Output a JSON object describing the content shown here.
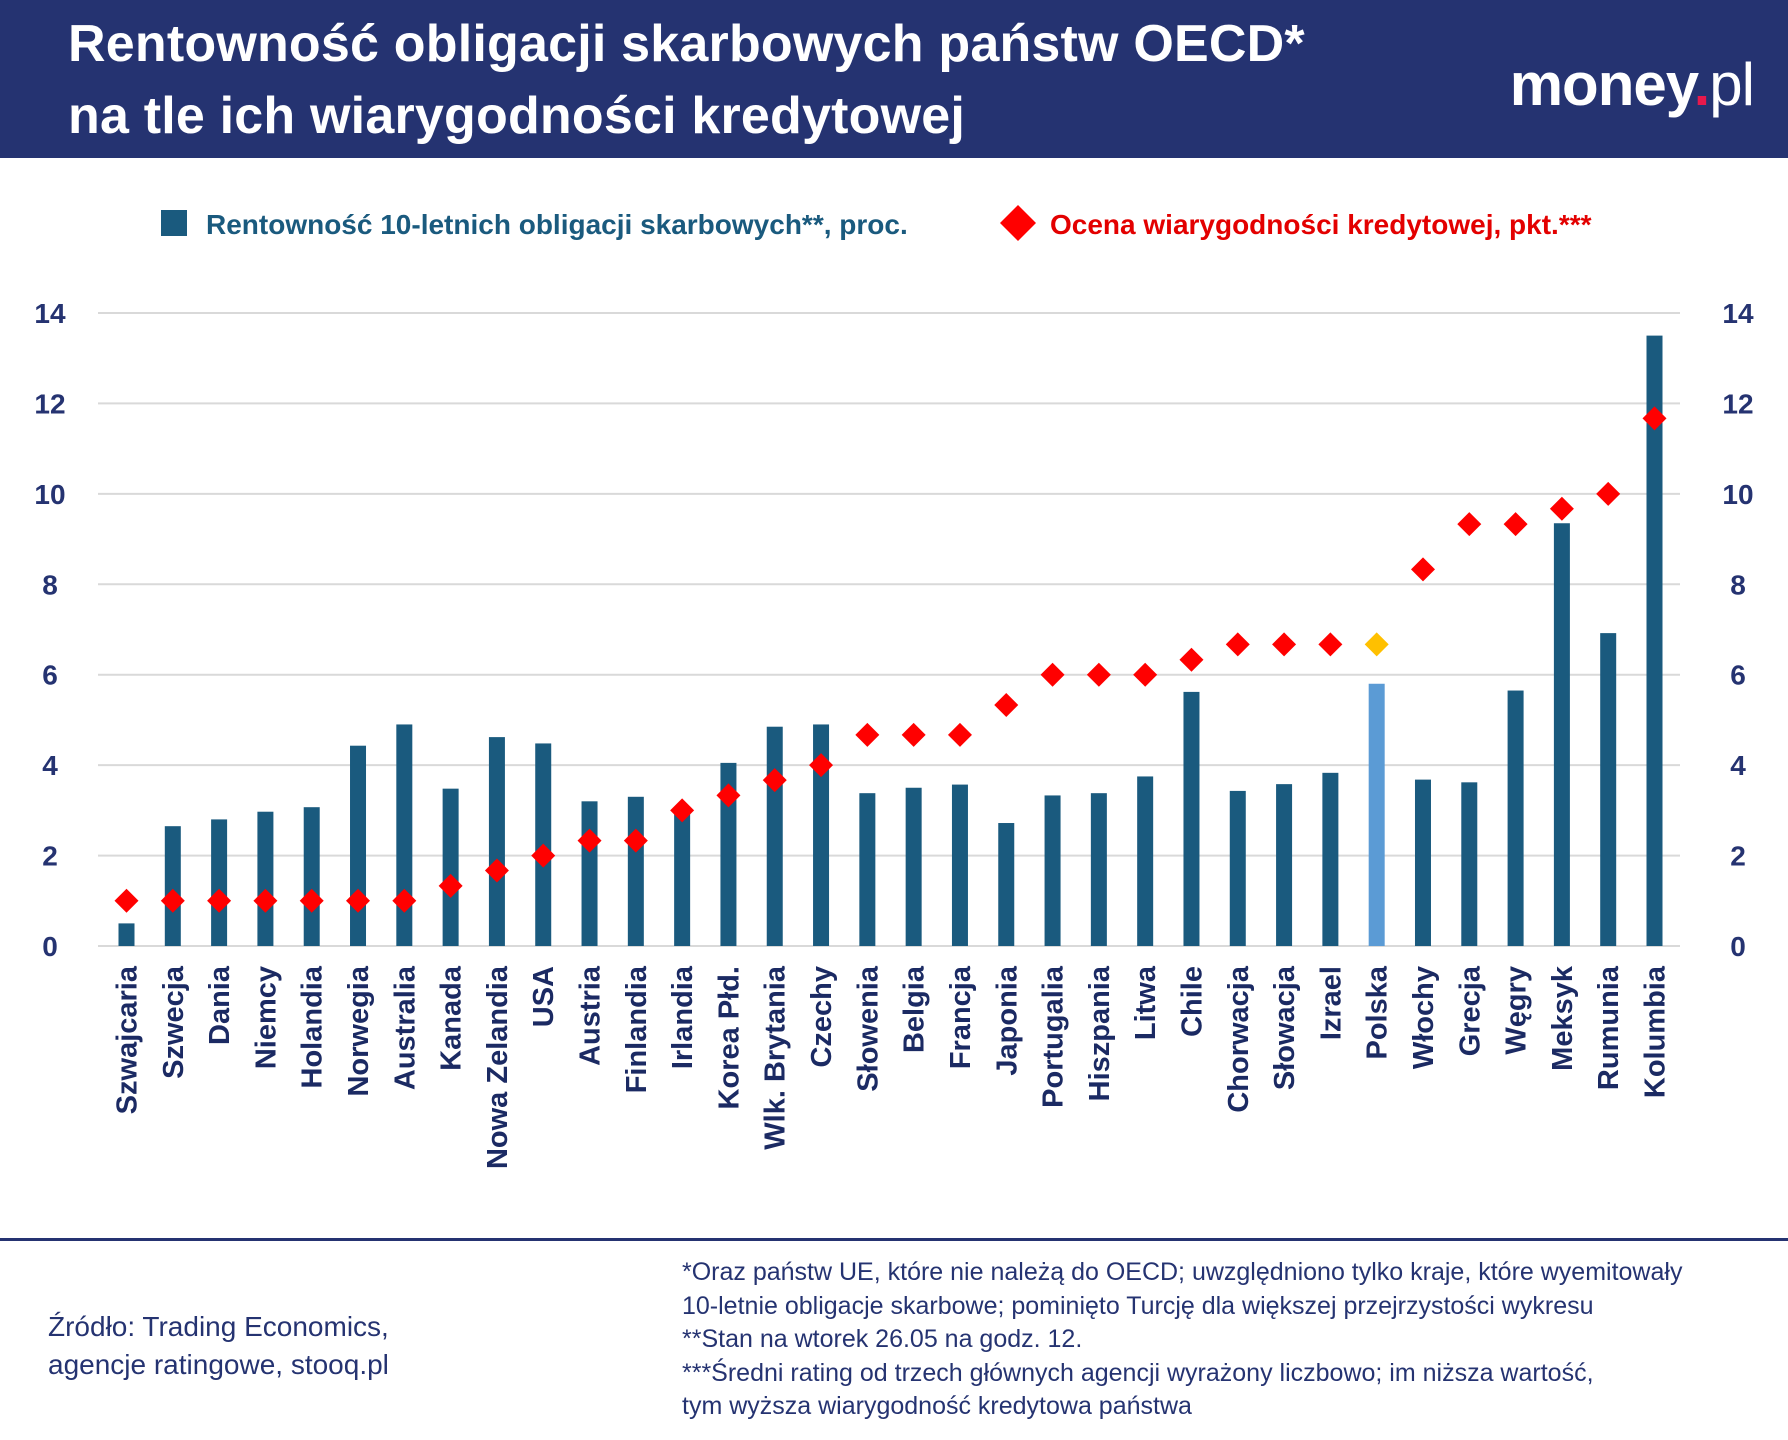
{
  "header": {
    "title_line1": "Rentowność obligacji skarbowych państw OECD*",
    "title_line2": "na tle ich wiarygodności kredytowej",
    "logo_main": "money",
    "logo_dot": ".",
    "logo_tld": "pl"
  },
  "colors": {
    "header_bg": "#253371",
    "bar": "#1a5a7e",
    "bar_highlight": "#5b9bd5",
    "diamond": "#ff0000",
    "diamond_highlight": "#ffc000",
    "legend_bar_text": "#1a5a7e",
    "legend_diamond_text": "#e30000",
    "highlight_label": "#5b9bd5",
    "grid": "#d9d9d9"
  },
  "chart_data": {
    "type": "bar",
    "categories": [
      "Szwajcaria",
      "Szwecja",
      "Dania",
      "Niemcy",
      "Holandia",
      "Norwegia",
      "Australia",
      "Kanada",
      "Nowa Zelandia",
      "USA",
      "Austria",
      "Finlandia",
      "Irlandia",
      "Korea Płd.",
      "Wlk. Brytania",
      "Czechy",
      "Słowenia",
      "Belgia",
      "Francja",
      "Japonia",
      "Portugalia",
      "Hiszpania",
      "Litwa",
      "Chile",
      "Chorwacja",
      "Słowacja",
      "Izrael",
      "Polska",
      "Włochy",
      "Grecja",
      "Węgry",
      "Meksyk",
      "Rumunia",
      "Kolumbia"
    ],
    "highlight_category": "Polska",
    "series": [
      {
        "name": "Rentowność 10-letnich obligacji skarbowych**, proc.",
        "kind": "bar",
        "values": [
          0.5,
          2.65,
          2.8,
          2.97,
          3.07,
          4.43,
          4.9,
          3.48,
          4.62,
          4.48,
          3.2,
          3.3,
          3.03,
          4.05,
          4.85,
          4.9,
          3.38,
          3.5,
          3.57,
          2.72,
          3.33,
          3.38,
          3.75,
          5.62,
          3.43,
          3.58,
          3.83,
          5.8,
          3.68,
          3.62,
          5.65,
          9.35,
          6.92,
          13.5
        ]
      },
      {
        "name": "Ocena wiarygodności kredytowej, pkt.***",
        "kind": "diamond",
        "values": [
          1,
          1,
          1,
          1,
          1,
          1,
          1,
          1.33,
          1.67,
          2,
          2.33,
          2.33,
          3,
          3.33,
          3.67,
          4,
          4.67,
          4.67,
          4.67,
          5.33,
          6,
          6,
          6,
          6.33,
          6.67,
          6.67,
          6.67,
          6.67,
          8.33,
          9.33,
          9.33,
          9.67,
          10,
          11.67
        ]
      }
    ],
    "yticks": [
      "0",
      "2",
      "4",
      "6",
      "8",
      "10",
      "12",
      "14"
    ],
    "ylim": [
      0,
      14
    ],
    "grid": true,
    "legend_position": "top"
  },
  "footer": {
    "source_line1": "Źródło: Trading Economics,",
    "source_line2": "agencje ratingowe, stooq.pl",
    "notes": [
      "*Oraz państw UE, które nie należą do OECD; uwzględniono tylko kraje, które wyemitowały",
      "10-letnie obligacje skarbowe; pominięto Turcję dla większej przejrzystości wykresu",
      "**Stan na wtorek 26.05 na godz. 12.",
      "***Średni rating od trzech głównych agencji wyrażony liczbowo; im niższa wartość,",
      "tym wyższa wiarygodność kredytowa państwa"
    ]
  }
}
